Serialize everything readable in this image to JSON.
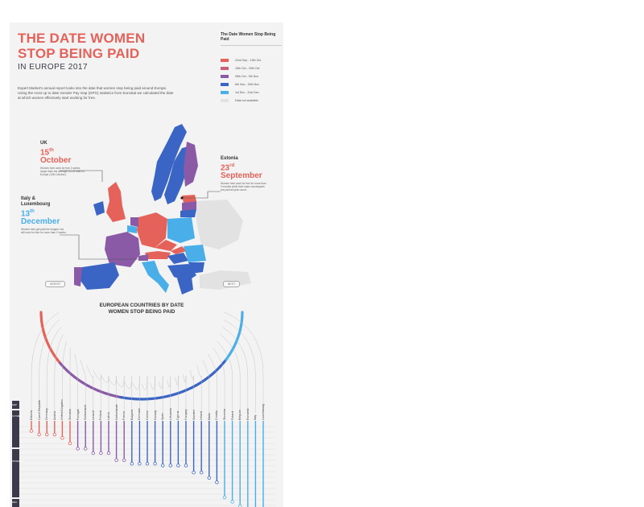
{
  "title": "THE DATE WOMEN STOP BEING PAID",
  "subtitle": "IN EUROPE 2017",
  "intro": "Expert Market's annual report looks into the date that women stop being paid around Europe. Using the most up to date Gender Pay Gap (GPG) statistics from Eurostat we calculated the date at which women effectively start working for free.",
  "legend": {
    "title": "The Date Women Stop Being Paid",
    "items": [
      {
        "label": "22nd Sep - 15th Oct",
        "color": "#e4625a"
      },
      {
        "label": "16th Oct - 25th Oct",
        "color": "#c8607a"
      },
      {
        "label": "26th Oct - 5th Nov",
        "color": "#8a5aa6"
      },
      {
        "label": "6th Nov - 30th Nov",
        "color": "#3b65c4"
      },
      {
        "label": "1st Dec - 31st Dec",
        "color": "#4aaee8"
      },
      {
        "label": "Data not available",
        "color": "#e2e2e2"
      }
    ]
  },
  "callouts": {
    "uk": {
      "name": "UK",
      "day": "15",
      "suffix": "th",
      "month": "October",
      "desc": "Women here work for free 2 weeks longer than the average cut-off date for Europe (13th October)."
    },
    "estonia": {
      "name": "Estonia",
      "day": "23",
      "suffix": "rd",
      "month": "September",
      "desc": "Women here work for free for more than 3 months while their male counterparts are paid all year round."
    },
    "italy": {
      "name": "Italy & Luxembourg",
      "day": "13",
      "suffix": "th",
      "month": "December",
      "desc": "Women here get paid the longest, but still work for free for more than 2 weeks."
    }
  },
  "chart": {
    "title": "EUROPEAN COUNTRIES BY DATE WOMEN STOP BEING PAID",
    "worst_label": "WORST",
    "best_label": "BEST",
    "months": [
      "SEP",
      "OCTOBER",
      "NOVEMBER",
      "DEC"
    ]
  },
  "chart_data": {
    "type": "table",
    "countries": [
      "Estonia",
      "Czech Republic",
      "Germany",
      "Austria",
      "United Kingdom",
      "Slovakia",
      "Portugal",
      "Switzerland",
      "Iceland",
      "Finland",
      "Latvia",
      "Netherlands",
      "France",
      "Bulgaria",
      "Denmark",
      "Greece",
      "Norway",
      "Spain",
      "Lithuania",
      "Cyprus",
      "Hungary",
      "Sweden",
      "Ireland",
      "Malta",
      "Croatia",
      "Slovenia",
      "Poland",
      "Belgium",
      "Romania",
      "Italy",
      "Luxembourg"
    ],
    "colors": [
      "#e4625a",
      "#e4625a",
      "#e4625a",
      "#e4625a",
      "#e4625a",
      "#e4625a",
      "#8a5aa6",
      "#8a5aa6",
      "#8a5aa6",
      "#8a5aa6",
      "#8a5aa6",
      "#8a5aa6",
      "#8a5aa6",
      "#3b65c4",
      "#3b65c4",
      "#3b65c4",
      "#3b65c4",
      "#3b65c4",
      "#3b65c4",
      "#3b65c4",
      "#3b65c4",
      "#3b65c4",
      "#3b65c4",
      "#3b65c4",
      "#3b65c4",
      "#4aaee8",
      "#4aaee8",
      "#4aaee8",
      "#4aaee8",
      "#4aaee8",
      "#4aaee8"
    ],
    "end_rank": [
      0.05,
      0.09,
      0.09,
      0.09,
      0.13,
      0.19,
      0.25,
      0.25,
      0.3,
      0.3,
      0.3,
      0.38,
      0.38,
      0.42,
      0.42,
      0.42,
      0.42,
      0.44,
      0.44,
      0.44,
      0.44,
      0.52,
      0.52,
      0.58,
      0.63,
      0.8,
      0.85,
      0.9,
      0.95,
      1.0,
      1.0
    ]
  }
}
